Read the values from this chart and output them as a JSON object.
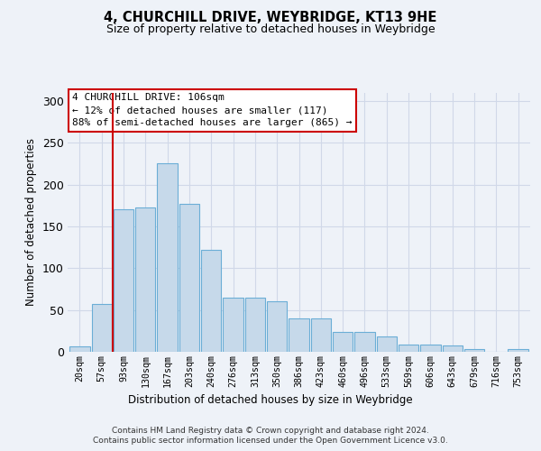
{
  "title1": "4, CHURCHILL DRIVE, WEYBRIDGE, KT13 9HE",
  "title2": "Size of property relative to detached houses in Weybridge",
  "xlabel": "Distribution of detached houses by size in Weybridge",
  "ylabel": "Number of detached properties",
  "categories": [
    "20sqm",
    "57sqm",
    "93sqm",
    "130sqm",
    "167sqm",
    "203sqm",
    "240sqm",
    "276sqm",
    "313sqm",
    "350sqm",
    "386sqm",
    "423sqm",
    "460sqm",
    "496sqm",
    "533sqm",
    "569sqm",
    "606sqm",
    "643sqm",
    "679sqm",
    "716sqm",
    "753sqm"
  ],
  "values": [
    7,
    57,
    170,
    172,
    225,
    177,
    122,
    65,
    65,
    60,
    40,
    40,
    24,
    24,
    18,
    9,
    9,
    8,
    3,
    0,
    3
  ],
  "bar_color": "#c6d9ea",
  "bar_edge_color": "#6baed6",
  "grid_color": "#d0d8e8",
  "vline_color": "#cc0000",
  "vline_x": 1.5,
  "annotation_line1": "4 CHURCHILL DRIVE: 106sqm",
  "annotation_line2": "← 12% of detached houses are smaller (117)",
  "annotation_line3": "88% of semi-detached houses are larger (865) →",
  "annotation_box_color": "white",
  "annotation_box_edge_color": "#cc0000",
  "footer1": "Contains HM Land Registry data © Crown copyright and database right 2024.",
  "footer2": "Contains public sector information licensed under the Open Government Licence v3.0.",
  "ylim": [
    0,
    310
  ],
  "yticks": [
    0,
    50,
    100,
    150,
    200,
    250,
    300
  ],
  "background_color": "#eef2f8"
}
